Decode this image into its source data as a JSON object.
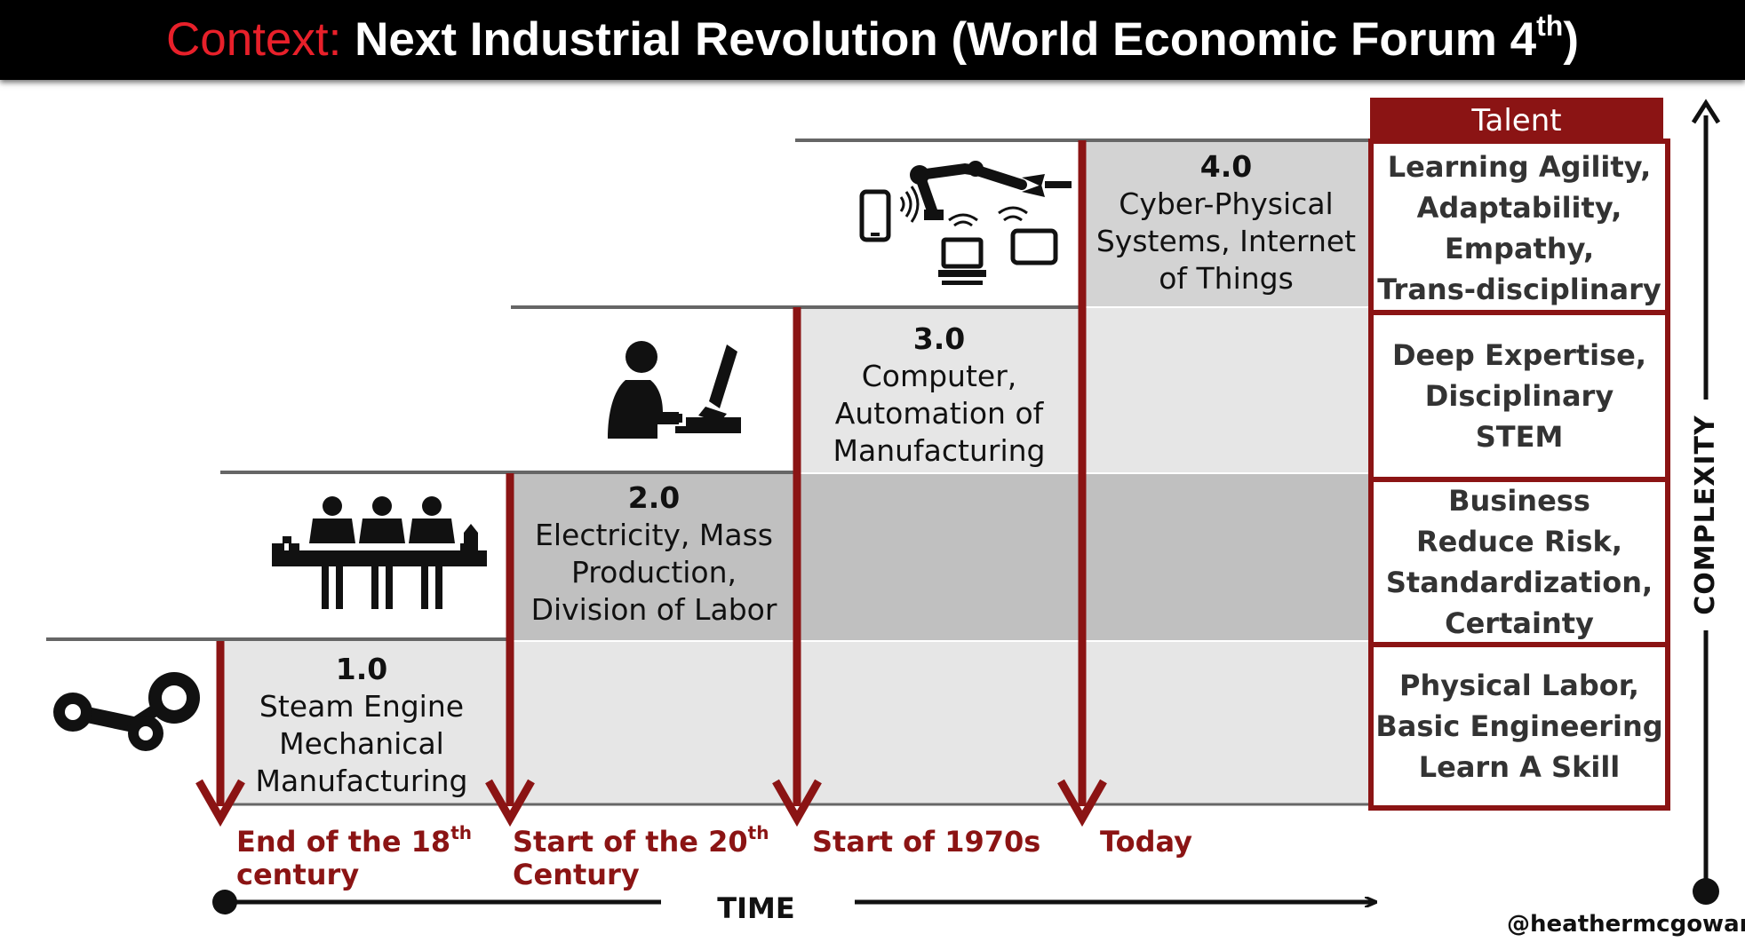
{
  "header": {
    "title_prefix": "Context:",
    "title_main": "Next Industrial Revolution (World Economic Forum 4",
    "title_sup": "th",
    "title_end": ")"
  },
  "eras": [
    {
      "num": "1.0",
      "text": "Steam Engine\nMechanical\nManufacturing",
      "icon": "steam-engine-icon"
    },
    {
      "num": "2.0",
      "text": "Electricity, Mass\nProduction,\nDivision of Labor",
      "icon": "assembly-line-workers-icon"
    },
    {
      "num": "3.0",
      "text": "Computer,\nAutomation of\nManufacturing",
      "icon": "computer-operator-icon"
    },
    {
      "num": "4.0",
      "text": "Cyber-Physical\nSystems, Internet\nof Things",
      "icon": "connected-devices-robot-arm-icon"
    }
  ],
  "talent": {
    "heading": "Talent",
    "levels": [
      "Learning Agility,\nAdaptability,\nEmpathy,\nTrans-disciplinary",
      "Deep Expertise,\nDisciplinary\nSTEM",
      "Business\nReduce Risk,\nStandardization,\nCertainty",
      "Physical Labor,\nBasic Engineering\nLearn A Skill"
    ]
  },
  "milestones": [
    {
      "line1": "End of the 18",
      "sup": "th",
      "line2": "century"
    },
    {
      "line1": "Start of the 20",
      "sup": "th",
      "line2": "Century"
    },
    {
      "line1": "Start of 1970s",
      "sup": "",
      "line2": ""
    },
    {
      "line1": "Today",
      "sup": "",
      "line2": ""
    }
  ],
  "axes": {
    "x_label": "TIME",
    "y_label": "COMPLEXITY"
  },
  "credit": "@heathermcgowan",
  "colors": {
    "accent": "#8b1414",
    "title_accent": "#e8202a",
    "cell_light": "#e6e6e6",
    "cell_mid": "#d3d3d3",
    "cell_dark": "#c0c0c0"
  }
}
